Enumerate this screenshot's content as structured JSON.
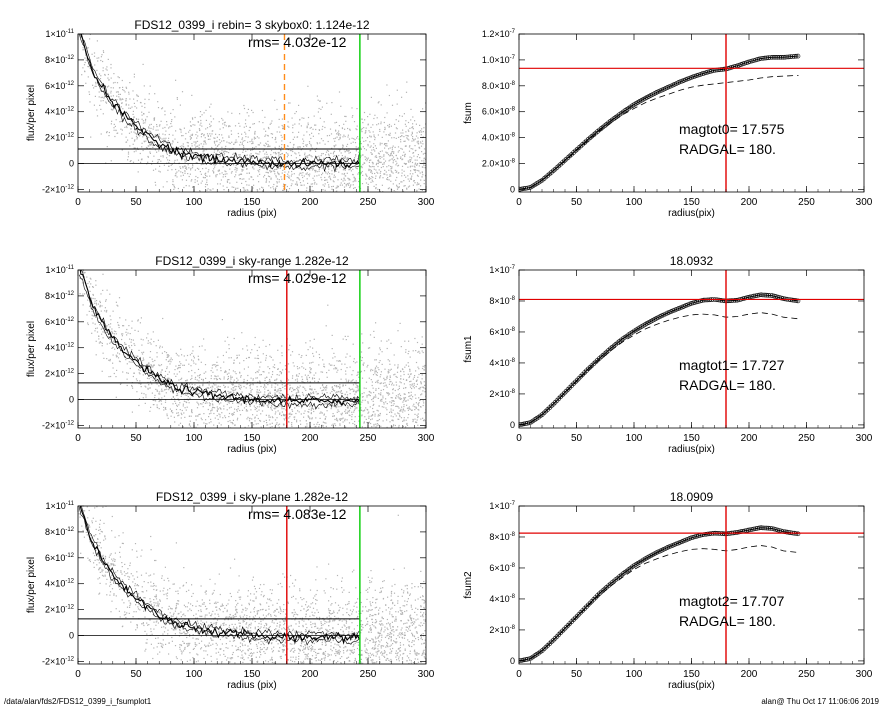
{
  "footer": {
    "path": "/data/alan/fds2/FDS12_0399_i_fsumplot1",
    "stamp": "alan@  Thu Oct 17 11:06:06 2019"
  },
  "colors": {
    "scatter": "#b4b4b4",
    "profile": "#000000",
    "sky": "#000000",
    "radgal": "#e00000",
    "outer": "#00cc00",
    "sky_range": "#ff8c1a"
  },
  "chart_data": [
    {
      "type": "scatter",
      "title": "FDS12_0399_i rebin= 3    skybox0:  1.124e-12",
      "rms_label": "rms= 4.032e-12",
      "xlabel": "radius (pix)",
      "ylabel": "flux/per pixel",
      "xlim": [
        0,
        300
      ],
      "ylim": [
        -2.2e-12,
        1e-11
      ],
      "x_ticks": [
        "0",
        "50",
        "100",
        "150",
        "200",
        "250",
        "300"
      ],
      "y_ticks": [
        {
          "v": -2e-12,
          "m": "-2×10",
          "e": "-12"
        },
        {
          "v": 0,
          "m": "0",
          "e": ""
        },
        {
          "v": 2e-12,
          "m": "2×10",
          "e": "-12"
        },
        {
          "v": 4e-12,
          "m": "4×10",
          "e": "-12"
        },
        {
          "v": 6e-12,
          "m": "6×10",
          "e": "-12"
        },
        {
          "v": 8e-12,
          "m": "8×10",
          "e": "-12"
        },
        {
          "v": 1e-11,
          "m": "1×10",
          "e": "-11"
        }
      ],
      "sky_level": 1.124e-12,
      "vlines": [
        {
          "x": 178,
          "color": "orange",
          "dash": true
        },
        {
          "x": 243,
          "color": "green",
          "dash": false
        }
      ],
      "profile": {
        "x": [
          0,
          5,
          10,
          15,
          20,
          25,
          30,
          40,
          50,
          60,
          70,
          80,
          90,
          100,
          110,
          120,
          130,
          140,
          150,
          160,
          170,
          180,
          190,
          200,
          210,
          220,
          230,
          240,
          243
        ],
        "y": [
          1.05e-11,
          9.2e-12,
          7.8e-12,
          6.8e-12,
          6e-12,
          5.3e-12,
          4.7e-12,
          3.7e-12,
          2.9e-12,
          2.2e-12,
          1.6e-12,
          1.1e-12,
          8e-13,
          6e-13,
          4e-13,
          3e-13,
          2e-13,
          2e-13,
          1e-13,
          1e-13,
          0,
          0,
          -1e-13,
          0,
          0,
          1e-13,
          -1e-13,
          0,
          0
        ]
      }
    },
    {
      "type": "line",
      "title": "",
      "xlabel": "radius(pix)",
      "ylabel": "fsum",
      "xlim": [
        0,
        300
      ],
      "ylim": [
        -2e-09,
        1.2e-07
      ],
      "x_ticks": [
        "0",
        "50",
        "100",
        "150",
        "200",
        "250",
        "300"
      ],
      "y_ticks": [
        {
          "v": 0,
          "m": "0",
          "e": ""
        },
        {
          "v": 2e-08,
          "m": "2.0×10",
          "e": "-8"
        },
        {
          "v": 4e-08,
          "m": "4.0×10",
          "e": "-8"
        },
        {
          "v": 6e-08,
          "m": "6.0×10",
          "e": "-8"
        },
        {
          "v": 8e-08,
          "m": "8.0×10",
          "e": "-8"
        },
        {
          "v": 1e-07,
          "m": "1.0×10",
          "e": "-7"
        },
        {
          "v": 1.2e-07,
          "m": "1.2×10",
          "e": "-7"
        }
      ],
      "hline": 9.35e-08,
      "vline": 180,
      "annotations": [
        "magtot0=  17.575",
        "RADGAL=    180."
      ],
      "curve": {
        "x": [
          0,
          10,
          20,
          30,
          40,
          50,
          60,
          70,
          80,
          90,
          100,
          110,
          120,
          130,
          140,
          150,
          160,
          170,
          180,
          190,
          200,
          210,
          220,
          230,
          243
        ],
        "y": [
          0,
          1.5e-09,
          7e-09,
          1.45e-08,
          2.25e-08,
          3.05e-08,
          3.85e-08,
          4.6e-08,
          5.3e-08,
          5.95e-08,
          6.55e-08,
          7.05e-08,
          7.5e-08,
          7.9e-08,
          8.3e-08,
          8.65e-08,
          8.95e-08,
          9.2e-08,
          9.3e-08,
          9.55e-08,
          9.85e-08,
          1.01e-07,
          1.02e-07,
          1.02e-07,
          1.03e-07
        ]
      },
      "dashed": {
        "x": [
          0,
          10,
          20,
          30,
          40,
          50,
          60,
          70,
          80,
          90,
          100,
          110,
          120,
          130,
          140,
          150,
          160,
          170,
          180,
          190,
          200,
          210,
          220,
          230,
          243
        ],
        "y": [
          0,
          1.5e-09,
          7e-09,
          1.45e-08,
          2.2e-08,
          3e-08,
          3.75e-08,
          4.5e-08,
          5.15e-08,
          5.75e-08,
          6.25e-08,
          6.7e-08,
          7.05e-08,
          7.35e-08,
          7.65e-08,
          7.9e-08,
          8.05e-08,
          8.15e-08,
          8.25e-08,
          8.35e-08,
          8.45e-08,
          8.6e-08,
          8.7e-08,
          8.75e-08,
          8.8e-08
        ]
      }
    },
    {
      "type": "scatter",
      "title": "FDS12_0399_i sky-range  1.282e-12",
      "rms_label": "rms= 4.029e-12",
      "xlabel": "radius (pix)",
      "ylabel": "flux/per pixel",
      "xlim": [
        0,
        300
      ],
      "ylim": [
        -2.2e-12,
        1e-11
      ],
      "x_ticks": [
        "0",
        "50",
        "100",
        "150",
        "200",
        "250",
        "300"
      ],
      "y_ticks": [
        {
          "v": -2e-12,
          "m": "-2×10",
          "e": "-12"
        },
        {
          "v": 0,
          "m": "0",
          "e": ""
        },
        {
          "v": 2e-12,
          "m": "2×10",
          "e": "-12"
        },
        {
          "v": 4e-12,
          "m": "4×10",
          "e": "-12"
        },
        {
          "v": 6e-12,
          "m": "6×10",
          "e": "-12"
        },
        {
          "v": 8e-12,
          "m": "8×10",
          "e": "-12"
        },
        {
          "v": 1e-11,
          "m": "1×10",
          "e": "-11"
        }
      ],
      "sky_level": 1.282e-12,
      "vlines": [
        {
          "x": 180,
          "color": "red",
          "dash": false
        },
        {
          "x": 243,
          "color": "green",
          "dash": false
        }
      ],
      "profile": {
        "x": [
          0,
          5,
          10,
          15,
          20,
          25,
          30,
          40,
          50,
          60,
          70,
          80,
          90,
          100,
          110,
          120,
          130,
          140,
          150,
          160,
          170,
          180,
          190,
          200,
          210,
          220,
          230,
          240,
          243
        ],
        "y": [
          1.05e-11,
          9.2e-12,
          7.8e-12,
          6.8e-12,
          6e-12,
          5.3e-12,
          4.7e-12,
          3.7e-12,
          2.9e-12,
          2.2e-12,
          1.6e-12,
          1.1e-12,
          8e-13,
          6e-13,
          4e-13,
          3e-13,
          2e-13,
          1e-13,
          0,
          0,
          -1e-13,
          -1e-13,
          -2e-13,
          -1e-13,
          -1e-13,
          0,
          -2e-13,
          -1e-13,
          -1e-13
        ]
      }
    },
    {
      "type": "line",
      "title": "18.0932",
      "xlabel": "radius(pix)",
      "ylabel": "fsum1",
      "xlim": [
        0,
        300
      ],
      "ylim": [
        -2e-09,
        1e-07
      ],
      "x_ticks": [
        "0",
        "50",
        "100",
        "150",
        "200",
        "250",
        "300"
      ],
      "y_ticks": [
        {
          "v": 0,
          "m": "0",
          "e": ""
        },
        {
          "v": 2e-08,
          "m": "2×10",
          "e": "-8"
        },
        {
          "v": 4e-08,
          "m": "4×10",
          "e": "-8"
        },
        {
          "v": 6e-08,
          "m": "6×10",
          "e": "-8"
        },
        {
          "v": 8e-08,
          "m": "8×10",
          "e": "-8"
        },
        {
          "v": 1e-07,
          "m": "1×10",
          "e": "-7"
        }
      ],
      "hline": 8.1e-08,
      "vline": 180,
      "annotations": [
        "magtot1=  17.727",
        "RADGAL=    180."
      ],
      "curve": {
        "x": [
          0,
          10,
          20,
          30,
          40,
          50,
          60,
          70,
          80,
          90,
          100,
          110,
          120,
          130,
          140,
          150,
          160,
          170,
          180,
          190,
          200,
          210,
          220,
          230,
          243
        ],
        "y": [
          0,
          1.5e-09,
          6.5e-09,
          1.35e-08,
          2.1e-08,
          2.85e-08,
          3.6e-08,
          4.3e-08,
          4.95e-08,
          5.55e-08,
          6.05e-08,
          6.5e-08,
          6.9e-08,
          7.25e-08,
          7.55e-08,
          7.85e-08,
          8.05e-08,
          8.1e-08,
          8e-08,
          8.05e-08,
          8.25e-08,
          8.4e-08,
          8.35e-08,
          8.15e-08,
          8e-08
        ]
      },
      "dashed": {
        "x": [
          0,
          10,
          20,
          30,
          40,
          50,
          60,
          70,
          80,
          90,
          100,
          110,
          120,
          130,
          140,
          150,
          160,
          170,
          180,
          190,
          200,
          210,
          220,
          230,
          243
        ],
        "y": [
          0,
          1.5e-09,
          6.5e-09,
          1.35e-08,
          2.05e-08,
          2.8e-08,
          3.5e-08,
          4.2e-08,
          4.8e-08,
          5.35e-08,
          5.8e-08,
          6.2e-08,
          6.5e-08,
          6.75e-08,
          6.95e-08,
          7.1e-08,
          7.15e-08,
          7.1e-08,
          6.95e-08,
          7e-08,
          7.15e-08,
          7.25e-08,
          7.15e-08,
          6.95e-08,
          6.85e-08
        ]
      }
    },
    {
      "type": "scatter",
      "title": "FDS12_0399_i sky-plane  1.282e-12",
      "rms_label": "rms= 4.083e-12",
      "xlabel": "radius (pix)",
      "ylabel": "flux/per pixel",
      "xlim": [
        0,
        300
      ],
      "ylim": [
        -2.2e-12,
        1e-11
      ],
      "x_ticks": [
        "0",
        "50",
        "100",
        "150",
        "200",
        "250",
        "300"
      ],
      "y_ticks": [
        {
          "v": -2e-12,
          "m": "-2×10",
          "e": "-12"
        },
        {
          "v": 0,
          "m": "0",
          "e": ""
        },
        {
          "v": 2e-12,
          "m": "2×10",
          "e": "-12"
        },
        {
          "v": 4e-12,
          "m": "4×10",
          "e": "-12"
        },
        {
          "v": 6e-12,
          "m": "6×10",
          "e": "-12"
        },
        {
          "v": 8e-12,
          "m": "8×10",
          "e": "-12"
        },
        {
          "v": 1e-11,
          "m": "1×10",
          "e": "-11"
        }
      ],
      "sky_level": 1.282e-12,
      "vlines": [
        {
          "x": 180,
          "color": "red",
          "dash": false
        },
        {
          "x": 243,
          "color": "green",
          "dash": false
        }
      ],
      "profile": {
        "x": [
          0,
          5,
          10,
          15,
          20,
          25,
          30,
          40,
          50,
          60,
          70,
          80,
          90,
          100,
          110,
          120,
          130,
          140,
          150,
          160,
          170,
          180,
          190,
          200,
          210,
          220,
          230,
          240,
          243
        ],
        "y": [
          1.05e-11,
          9.2e-12,
          7.8e-12,
          6.8e-12,
          6e-12,
          5.3e-12,
          4.7e-12,
          3.7e-12,
          2.9e-12,
          2.2e-12,
          1.6e-12,
          1.1e-12,
          8e-13,
          6e-13,
          4e-13,
          3e-13,
          2e-13,
          1e-13,
          0,
          0,
          -1e-13,
          -1e-13,
          -2e-13,
          -1e-13,
          -1e-13,
          0,
          -2e-13,
          -1e-13,
          -1e-13
        ]
      }
    },
    {
      "type": "line",
      "title": "18.0909",
      "xlabel": "radius(pix)",
      "ylabel": "fsum2",
      "xlim": [
        0,
        300
      ],
      "ylim": [
        -2e-09,
        1e-07
      ],
      "x_ticks": [
        "0",
        "50",
        "100",
        "150",
        "200",
        "250",
        "300"
      ],
      "y_ticks": [
        {
          "v": 0,
          "m": "0",
          "e": ""
        },
        {
          "v": 2e-08,
          "m": "2×10",
          "e": "-8"
        },
        {
          "v": 4e-08,
          "m": "4×10",
          "e": "-8"
        },
        {
          "v": 6e-08,
          "m": "6×10",
          "e": "-8"
        },
        {
          "v": 8e-08,
          "m": "8×10",
          "e": "-8"
        },
        {
          "v": 1e-07,
          "m": "1×10",
          "e": "-7"
        }
      ],
      "hline": 8.25e-08,
      "vline": 180,
      "annotations": [
        "magtot2=  17.707",
        "RADGAL=    180."
      ],
      "curve": {
        "x": [
          0,
          10,
          20,
          30,
          40,
          50,
          60,
          70,
          80,
          90,
          100,
          110,
          120,
          130,
          140,
          150,
          160,
          170,
          180,
          190,
          200,
          210,
          220,
          230,
          243
        ],
        "y": [
          0,
          1.5e-09,
          6.5e-09,
          1.35e-08,
          2.1e-08,
          2.85e-08,
          3.6e-08,
          4.35e-08,
          5e-08,
          5.6e-08,
          6.15e-08,
          6.6e-08,
          7e-08,
          7.35e-08,
          7.65e-08,
          7.95e-08,
          8.15e-08,
          8.25e-08,
          8.2e-08,
          8.3e-08,
          8.45e-08,
          8.6e-08,
          8.55e-08,
          8.35e-08,
          8.2e-08
        ]
      },
      "dashed": {
        "x": [
          0,
          10,
          20,
          30,
          40,
          50,
          60,
          70,
          80,
          90,
          100,
          110,
          120,
          130,
          140,
          150,
          160,
          170,
          180,
          190,
          200,
          210,
          220,
          230,
          243
        ],
        "y": [
          0,
          1.5e-09,
          6.5e-09,
          1.35e-08,
          2.05e-08,
          2.8e-08,
          3.55e-08,
          4.25e-08,
          4.85e-08,
          5.4e-08,
          5.9e-08,
          6.3e-08,
          6.6e-08,
          6.85e-08,
          7.05e-08,
          7.2e-08,
          7.25e-08,
          7.2e-08,
          7.1e-08,
          7.2e-08,
          7.35e-08,
          7.45e-08,
          7.35e-08,
          7.1e-08,
          7e-08
        ]
      }
    }
  ]
}
